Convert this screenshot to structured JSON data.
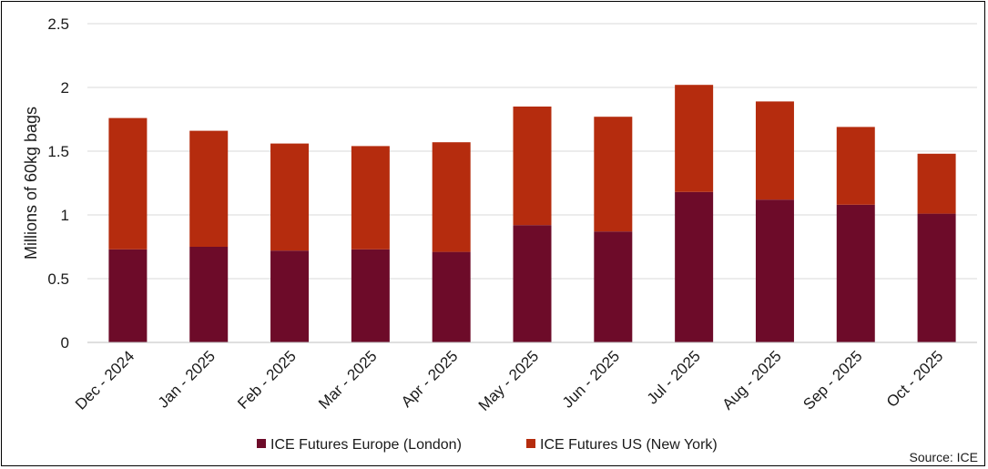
{
  "chart_data": {
    "type": "bar",
    "stacked": true,
    "title": "",
    "xlabel": "",
    "ylabel": "Millions of 60kg bags",
    "ylim": [
      0,
      2.5
    ],
    "yticks": [
      "0",
      "0.5",
      "1",
      "1.5",
      "2",
      "2.5"
    ],
    "grid": true,
    "legend_position": "bottom",
    "categories": [
      "Dec - 2024",
      "Jan - 2025",
      "Feb - 2025",
      "Mar - 2025",
      "Apr - 2025",
      "May - 2025",
      "Jun - 2025",
      "Jul - 2025",
      "Aug - 2025",
      "Sep - 2025",
      "Oct - 2025"
    ],
    "series": [
      {
        "name": "ICE Futures Europe (London)",
        "color": "#6d0b29",
        "values": [
          0.73,
          0.75,
          0.72,
          0.73,
          0.71,
          0.92,
          0.87,
          1.18,
          1.12,
          1.08,
          1.01
        ]
      },
      {
        "name": "ICE Futures US (New York)",
        "color": "#b52c0e",
        "values": [
          1.03,
          0.91,
          0.84,
          0.81,
          0.86,
          0.93,
          0.9,
          0.84,
          0.77,
          0.61,
          0.47
        ]
      }
    ],
    "source": "Source: ICE"
  }
}
